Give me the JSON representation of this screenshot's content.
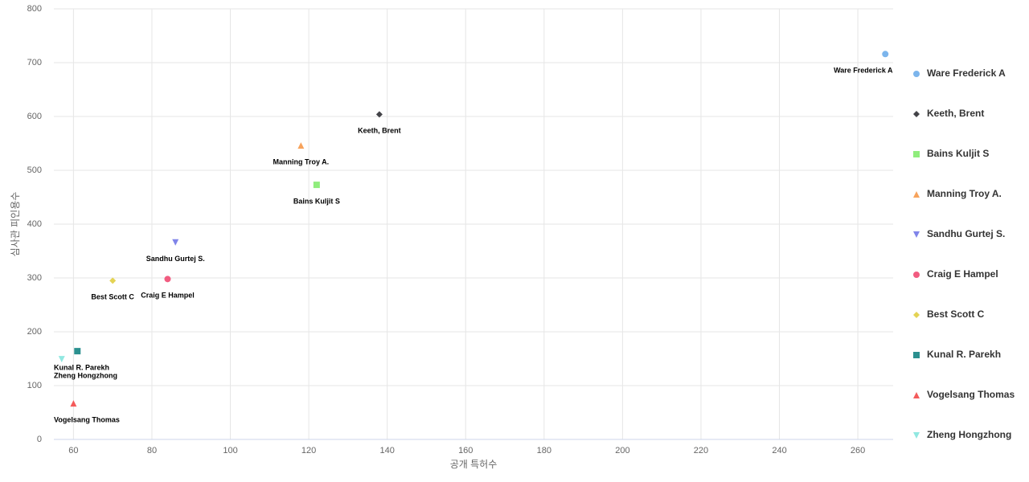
{
  "chart_data": {
    "type": "scatter",
    "x_label": "공개 특허수",
    "y_label": "심사관 피인용수",
    "xlim": [
      55,
      269
    ],
    "ylim": [
      0,
      800
    ],
    "xticks": [
      60,
      80,
      100,
      120,
      140,
      160,
      180,
      200,
      220,
      240,
      260
    ],
    "yticks": [
      0,
      100,
      200,
      300,
      400,
      500,
      600,
      700,
      800
    ],
    "grid": true,
    "legend": "right",
    "series": [
      {
        "name": "Ware Frederick A",
        "color": "#7cb5ec",
        "marker": "circle",
        "x": [
          267
        ],
        "values": [
          716
        ]
      },
      {
        "name": "Keeth, Brent",
        "color": "#434348",
        "marker": "diamond",
        "x": [
          138
        ],
        "values": [
          604
        ]
      },
      {
        "name": "Bains Kuljit S",
        "color": "#90ed7d",
        "marker": "square",
        "x": [
          122
        ],
        "values": [
          473
        ]
      },
      {
        "name": "Manning Troy A.",
        "color": "#f7a35c",
        "marker": "triangle",
        "x": [
          118
        ],
        "values": [
          546
        ]
      },
      {
        "name": "Sandhu Gurtej S.",
        "color": "#8085e9",
        "marker": "triangle-down",
        "x": [
          86
        ],
        "values": [
          366
        ]
      },
      {
        "name": "Craig E Hampel",
        "color": "#f15c80",
        "marker": "circle",
        "x": [
          84
        ],
        "values": [
          298
        ]
      },
      {
        "name": "Best Scott C",
        "color": "#e4d354",
        "marker": "diamond",
        "x": [
          70
        ],
        "values": [
          295
        ]
      },
      {
        "name": "Kunal R. Parekh",
        "color": "#2b908f",
        "marker": "square",
        "x": [
          61
        ],
        "values": [
          164
        ]
      },
      {
        "name": "Vogelsang Thomas",
        "color": "#f45b5b",
        "marker": "triangle",
        "x": [
          60
        ],
        "values": [
          67
        ]
      },
      {
        "name": "Zheng Hongzhong",
        "color": "#91e8e1",
        "marker": "triangle-down",
        "x": [
          57
        ],
        "values": [
          149
        ]
      }
    ]
  }
}
